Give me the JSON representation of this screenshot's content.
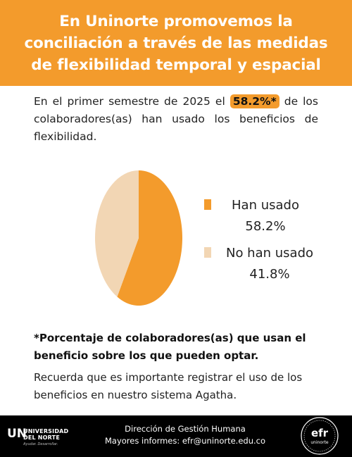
{
  "header": {
    "title": "En Uninorte promovemos la conciliación a través de las medidas de flexibilidad temporal y espacial"
  },
  "intro": {
    "before": "En el primer semestre de 2025 el ",
    "highlight": "58.2%*",
    "after": " de los colaboradores(as) han usado los beneficios de flexibilidad."
  },
  "chart_data": {
    "type": "pie",
    "categories": [
      "Han usado",
      "No han usado"
    ],
    "values": [
      58.2,
      41.8
    ],
    "labels": [
      "58.2%",
      "41.8%"
    ],
    "colors": [
      "#f39b2c",
      "#f2d6b4"
    ],
    "legend_position": "right"
  },
  "legend": [
    {
      "label": "Han usado",
      "value": "58.2%",
      "color": "#f39b2c"
    },
    {
      "label": "No han usado",
      "value": "41.8%",
      "color": "#f2d6b4"
    }
  ],
  "note_bold": "*Porcentaje de colaboradores(as) que usan el beneficio sobre los que pueden optar.",
  "note": "Recuerda que es importante registrar el uso de los beneficios en nuestro sistema Agatha.",
  "footer": {
    "line1": "Dirección de Gestión Humana",
    "line2": "Mayores informes: efr@uninorte.edu.co",
    "logo_mark": "UN",
    "logo_line1": "UNIVERSIDAD",
    "logo_line2": "DEL NORTE",
    "logo_line3": "Ayudar. Desarrollar.",
    "seal_text": "efr",
    "seal_sub": "uninorte"
  },
  "colors": {
    "accent": "#f39b2c",
    "light": "#f2d6b4",
    "footer_bg": "#000000"
  }
}
